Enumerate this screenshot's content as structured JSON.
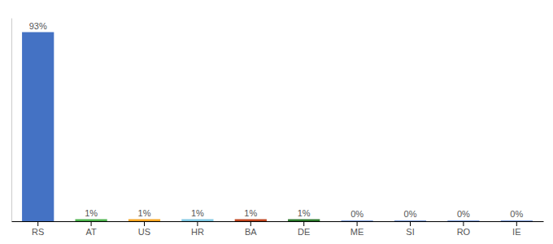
{
  "chart_data": {
    "type": "bar",
    "categories": [
      "RS",
      "AT",
      "US",
      "HR",
      "BA",
      "DE",
      "ME",
      "SI",
      "RO",
      "IE"
    ],
    "values": [
      93,
      1,
      1,
      1,
      1,
      1,
      0.3,
      0.3,
      0.3,
      0.3
    ],
    "value_labels": [
      "93%",
      "1%",
      "1%",
      "1%",
      "1%",
      "1%",
      "0%",
      "0%",
      "0%",
      "0%"
    ],
    "colors": [
      "#4472c4",
      "#4db34d",
      "#f5a623",
      "#7ec8e3",
      "#c0441e",
      "#2d7a2d",
      "#4472c4",
      "#4472c4",
      "#4472c4",
      "#4472c4"
    ],
    "ylim": [
      0,
      100
    ],
    "grid": false,
    "data_labels": true,
    "tick_labels": "x"
  }
}
